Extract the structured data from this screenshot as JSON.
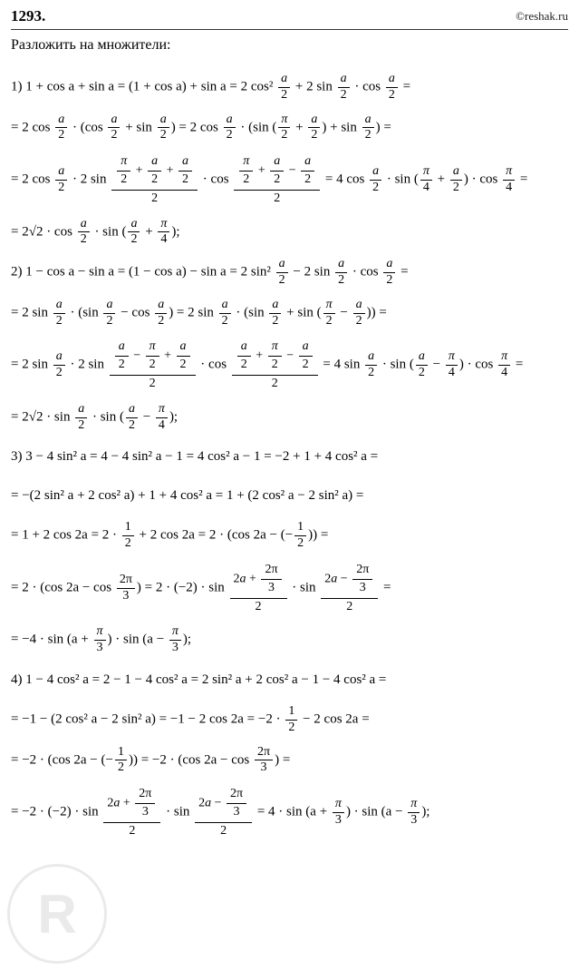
{
  "header": {
    "problem_number": "1293.",
    "site": "©reshak.ru"
  },
  "instruction": "Разложить на множители:",
  "lines": {
    "l1": "1) 1 + cos a + sin a = (1 + cos a) + sin a = 2 cos² ",
    "l1b": " + 2 sin ",
    "l1c": " · cos ",
    "l1d": " =",
    "l2": "= 2 cos ",
    "l2b": " · (cos ",
    "l2c": " + sin ",
    "l2d": ") = 2 cos ",
    "l2e": " · (sin (",
    "l2f": " + ",
    "l2g": ") + sin ",
    "l2h": ") =",
    "l3": "= 2 cos ",
    "l3b": " · 2 sin ",
    "l3c": " · cos ",
    "l3d": " = 4 cos ",
    "l3e": " · sin (",
    "l3f": " + ",
    "l3g": ") · cos ",
    "l3h": " =",
    "l4": "= 2√2 · cos ",
    "l4b": " · sin (",
    "l4c": " + ",
    "l4d": ");",
    "l5": "2) 1 − cos a − sin a = (1 − cos a) − sin a = 2 sin² ",
    "l5b": " − 2 sin ",
    "l5c": " · cos ",
    "l5d": " =",
    "l6": "= 2 sin ",
    "l6b": " · (sin ",
    "l6c": " − cos ",
    "l6d": ") = 2 sin ",
    "l6e": " · (sin ",
    "l6f": " + sin (",
    "l6g": " − ",
    "l6h": ")) =",
    "l7": "= 2 sin ",
    "l7b": " · 2 sin ",
    "l7c": " · cos ",
    "l7d": " = 4 sin ",
    "l7e": " · sin (",
    "l7f": " − ",
    "l7g": ") · cos ",
    "l7h": " =",
    "l8": "= 2√2 · sin ",
    "l8b": " · sin (",
    "l8c": " − ",
    "l8d": ");",
    "l9": "3) 3 − 4 sin² a = 4 − 4 sin² a − 1 = 4 cos² a − 1 = −2 + 1 + 4 cos² a =",
    "l10": "= −(2 sin² a + 2 cos² a) + 1 + 4 cos² a = 1 + (2 cos² a − 2 sin² a) =",
    "l11": "= 1 + 2 cos 2a = 2 · ",
    "l11b": " + 2 cos 2a = 2 · (cos 2a − (−",
    "l11c": ")) =",
    "l12": "= 2 · (cos 2a − cos ",
    "l12b": ") = 2 · (−2) · sin ",
    "l12c": " · sin ",
    "l12d": " =",
    "l13": "= −4 · sin (a + ",
    "l13b": ") · sin (a − ",
    "l13c": ");",
    "l14": "4) 1 − 4 cos² a = 2 − 1 − 4 cos² a = 2 sin² a + 2 cos² a − 1 − 4 cos² a =",
    "l15": "= −1 − (2 cos² a − 2 sin² a) = −1 − 2 cos 2a = −2 · ",
    "l15b": " − 2 cos 2a =",
    "l16": "= −2 · (cos 2a − (−",
    "l16b": ")) = −2 · (cos 2a − cos ",
    "l16c": ") =",
    "l17": "= −2 · (−2) · sin ",
    "l17b": " · sin ",
    "l17c": " = 4 · sin (a + ",
    "l17d": ") · sin (a − ",
    "l17e": ");"
  },
  "fracs": {
    "a2": {
      "num": "a",
      "den": "2"
    },
    "pi2": {
      "num": "π",
      "den": "2"
    },
    "pi4": {
      "num": "π",
      "den": "4"
    },
    "pi3": {
      "num": "π",
      "den": "3"
    },
    "half": {
      "num": "1",
      "den": "2"
    },
    "twopi3": {
      "num": "2π",
      "den": "3"
    },
    "sum1_num": "π/2 + a/2 + a/2",
    "sum1_den": "2",
    "sum2_num": "π/2 + a/2 − a/2",
    "sum2_den": "2",
    "sum3_num": "a/2 − π/2 + a/2",
    "sum3_den": "2",
    "sum4_num": "a/2 + π/2 − a/2",
    "sum4_den": "2",
    "sum5_num": "2a + 2π/3",
    "sum5_den": "2",
    "sum6_num": "2a − 2π/3",
    "sum6_den": "2"
  },
  "colors": {
    "text": "#000000",
    "background": "#ffffff",
    "border": "#333333",
    "watermark": "#dddddd"
  }
}
